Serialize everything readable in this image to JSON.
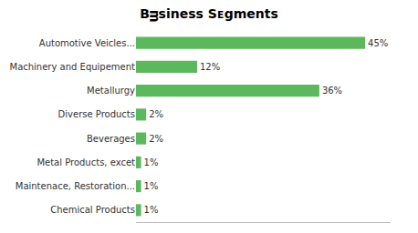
{
  "chart_data": {
    "type": "bar",
    "orientation": "horizontal",
    "title": "Bᴟsiness Sᴇgments",
    "categories": [
      "Chemical Products",
      "Maintenace, Restoration...",
      "Metal Products, excet",
      "Beverages",
      "Diverse Products",
      "Metallurgy",
      "Machinery and Equipement",
      "Automotive Veicles..."
    ],
    "values": [
      1,
      1,
      1,
      2,
      2,
      36,
      12,
      45
    ],
    "value_labels": [
      "1%",
      "1%",
      "1%",
      "2%",
      "2%",
      "36%",
      "12%",
      "45%"
    ],
    "data_labels": true,
    "color": "#5cb85c",
    "xlim": [
      0,
      50
    ],
    "tick_labels": "y",
    "grid": false
  }
}
